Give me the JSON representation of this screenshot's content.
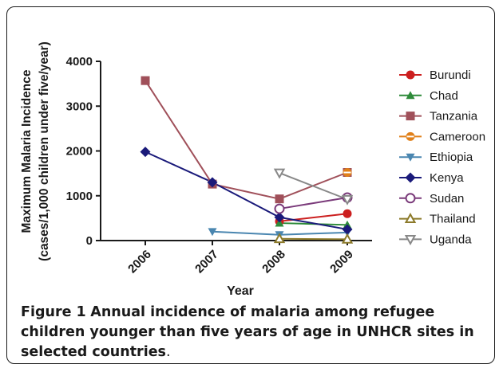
{
  "chart_data": {
    "type": "line",
    "xlabel": "Year",
    "ylabel": "Maximum Malaria Incidence",
    "ylabel2": "(cases/1,000 children under five/year)",
    "categories": [
      "2006",
      "2007",
      "2008",
      "2009"
    ],
    "ylim": [
      0,
      4000
    ],
    "yticks": [
      "0",
      "1000",
      "2000",
      "3000",
      "4000"
    ],
    "grid": false,
    "legend_position": "right",
    "series": [
      {
        "name": "Burundi",
        "color": "#cc1f1f",
        "marker": "circle",
        "values": [
          null,
          null,
          430,
          600
        ]
      },
      {
        "name": "Chad",
        "color": "#2e8b3a",
        "marker": "triangle-up",
        "values": [
          null,
          null,
          390,
          350
        ]
      },
      {
        "name": "Tanzania",
        "color": "#a0505a",
        "marker": "square",
        "values": [
          3570,
          1260,
          930,
          1520
        ]
      },
      {
        "name": "Cameroon",
        "color": "#e0801a",
        "marker": "circle-cross",
        "values": [
          null,
          null,
          null,
          1520
        ]
      },
      {
        "name": "Ethiopia",
        "color": "#4a86b0",
        "marker": "triangle-down",
        "values": [
          null,
          200,
          130,
          180
        ]
      },
      {
        "name": "Kenya",
        "color": "#1a1a7a",
        "marker": "diamond",
        "values": [
          1980,
          1300,
          520,
          250
        ]
      },
      {
        "name": "Sudan",
        "color": "#7a3a7a",
        "marker": "circle-open",
        "values": [
          null,
          null,
          710,
          960
        ]
      },
      {
        "name": "Thailand",
        "color": "#8c7a2a",
        "marker": "triangle-up-open",
        "values": [
          null,
          null,
          40,
          30
        ]
      },
      {
        "name": "Uganda",
        "color": "#888888",
        "marker": "triangle-down-open",
        "values": [
          null,
          null,
          1510,
          920
        ]
      }
    ]
  },
  "caption": {
    "label": "Figure 1",
    "text": "Annual incidence of malaria among refugee children younger than five years of age in UNHCR sites in selected countries",
    "end": "."
  }
}
